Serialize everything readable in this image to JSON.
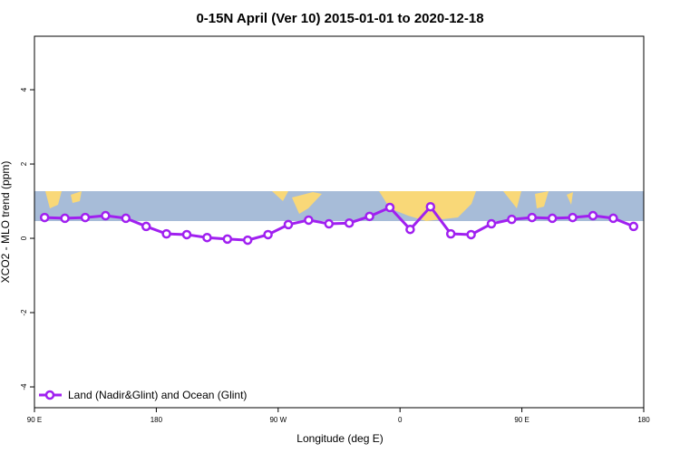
{
  "chart_data": {
    "type": "line",
    "title": "0-15N April (Ver 10)   2015-01-01 to 2020-12-18",
    "x_label": "Longitude (deg E)",
    "y_label": "XCO2 - MLO trend (ppm)",
    "x": [
      97.5,
      112.5,
      127.5,
      142.5,
      157.5,
      172.5,
      187.5,
      202.5,
      217.5,
      232.5,
      247.5,
      262.5,
      277.5,
      292.5,
      307.5,
      322.5,
      337.5,
      352.5,
      367.5,
      382.5,
      397.5,
      412.5,
      427.5,
      442.5,
      457.5,
      472.5,
      487.5,
      502.5,
      517.5,
      532.5
    ],
    "series": [
      {
        "name": "Land (Nadir&Glint) and Ocean (Glint)",
        "color": "#a020f0",
        "values": [
          0.56,
          0.54,
          0.56,
          0.61,
          0.54,
          0.32,
          0.12,
          0.1,
          0.02,
          -0.02,
          -0.05,
          0.1,
          0.37,
          0.49,
          0.39,
          0.41,
          0.59,
          0.83,
          0.24,
          0.85,
          0.12,
          0.1,
          0.39,
          0.51,
          0.56,
          0.54,
          0.56,
          0.61,
          0.54,
          0.32
        ]
      }
    ],
    "xlim": [
      90,
      540
    ],
    "xticks": [
      {
        "value": 90,
        "label": "90 E"
      },
      180,
      {
        "value": 270,
        "label": "90 W"
      },
      {
        "value": 360,
        "label": "0"
      },
      {
        "value": 450,
        "label": "90 E"
      },
      {
        "value": 540,
        "label": "180"
      }
    ],
    "ylim": [
      -4.56,
      5.44
    ],
    "yticks": [
      -4,
      -2,
      0,
      2,
      4
    ],
    "legend": "bottom-left"
  }
}
